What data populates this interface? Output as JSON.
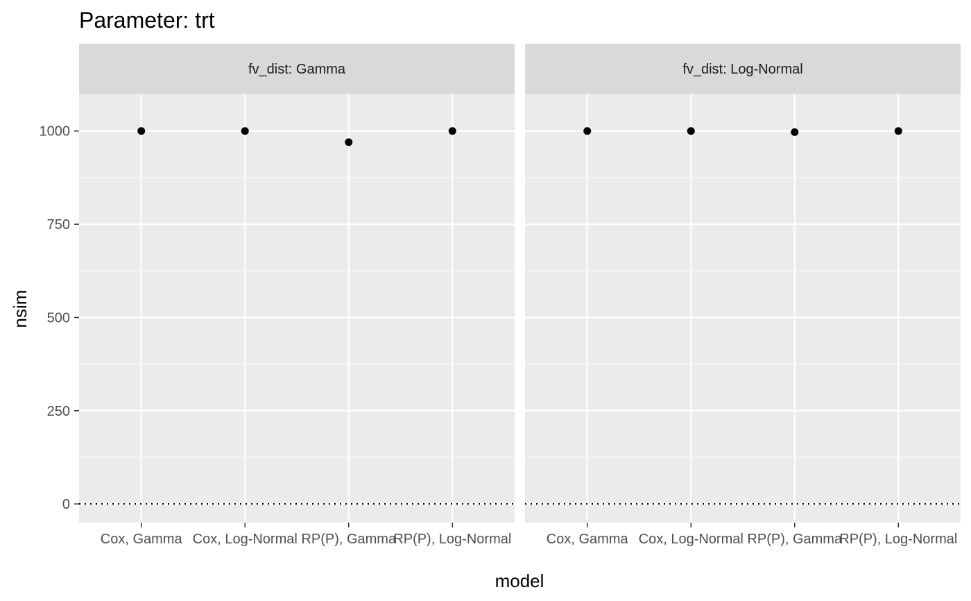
{
  "chart_data": {
    "type": "scatter",
    "title": "Parameter: trt",
    "xlabel": "model",
    "ylabel": "nsim",
    "categories": [
      "Cox, Gamma",
      "Cox, Log-Normal",
      "RP(P), Gamma",
      "RP(P), Log-Normal"
    ],
    "ylim": [
      -50,
      1100
    ],
    "yticks": [
      0,
      250,
      500,
      750,
      1000
    ],
    "grid": true,
    "reference_line": {
      "y": 0,
      "style": "dotted",
      "color": "#000000"
    },
    "point_color": "#000000",
    "panel_background": "#ebebeb",
    "strip_background": "#d9d9d9",
    "panels": [
      {
        "strip_label": "fv_dist: Gamma",
        "values": [
          1000,
          1000,
          970,
          1000
        ]
      },
      {
        "strip_label": "fv_dist: Log-Normal",
        "values": [
          1000,
          1000,
          997,
          1000
        ]
      }
    ]
  }
}
